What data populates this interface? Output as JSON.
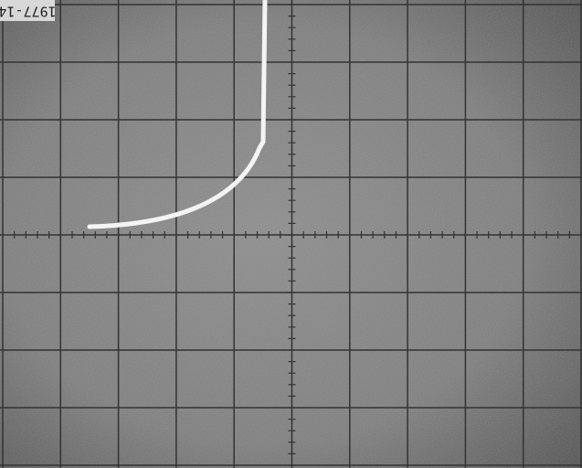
{
  "label": "1977-14"
}
